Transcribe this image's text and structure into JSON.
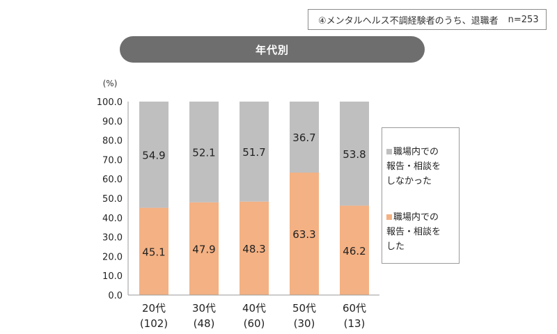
{
  "header": {
    "title": "④メンタルヘルス不調経験者のうち、退職者",
    "n_label": "n=253"
  },
  "group_label": "年代別",
  "colors": {
    "reported": "#f4b183",
    "not_reported": "#bfbfbf",
    "pill": "#6e6e6e",
    "axis": "#9a9a9a"
  },
  "chart_data": {
    "type": "bar",
    "stacked": true,
    "unit_label": "(%)",
    "ylim": [
      0,
      100
    ],
    "yticks": [
      "100.0",
      "90.0",
      "80.0",
      "70.0",
      "60.0",
      "50.0",
      "40.0",
      "30.0",
      "20.0",
      "10.0",
      "0.0"
    ],
    "categories": [
      {
        "label": "20代",
        "count": "(102)"
      },
      {
        "label": "30代",
        "count": "(48)"
      },
      {
        "label": "40代",
        "count": "(60)"
      },
      {
        "label": "50代",
        "count": "(30)"
      },
      {
        "label": "60代",
        "count": "(13)"
      }
    ],
    "series": [
      {
        "name": "職場内での\n報告・相談を\nした",
        "values": [
          45.1,
          47.9,
          48.3,
          63.3,
          46.2
        ],
        "labels": [
          "45.1",
          "47.9",
          "48.3",
          "63.3",
          "46.2"
        ]
      },
      {
        "name": "職場内での\n報告・相談を\nしなかった",
        "values": [
          54.9,
          52.1,
          51.7,
          36.7,
          53.8
        ],
        "labels": [
          "54.9",
          "52.1",
          "51.7",
          "36.7",
          "53.8"
        ]
      }
    ],
    "legend_position": "right"
  }
}
